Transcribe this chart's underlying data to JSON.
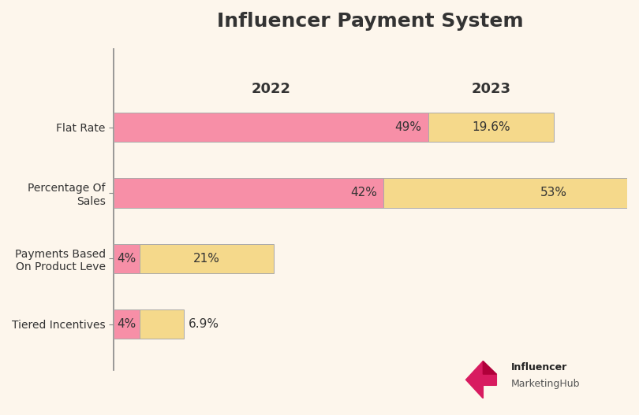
{
  "title": "Influencer Payment System",
  "title_fontsize": 18,
  "background_color": "#FDF6EC",
  "plot_bg_color": "#FDF6EC",
  "categories": [
    "Flat Rate",
    "Percentage Of\nSales",
    "Payments Based\nOn Product Leve",
    "Tiered Incentives"
  ],
  "values_2022": [
    49,
    42,
    4,
    4
  ],
  "values_2023": [
    19.6,
    53,
    21,
    6.9
  ],
  "labels_2022": [
    "49%",
    "42%",
    "4%",
    "4%"
  ],
  "labels_2023": [
    "19.6%",
    "53%",
    "21%",
    "6.9%"
  ],
  "color_2022": "#F78FA7",
  "color_2023": "#F5D98B",
  "year_2022": "2022",
  "year_2023": "2023",
  "xlim": [
    0,
    80
  ],
  "bar_height": 0.45,
  "font_color": "#333333",
  "label_fontsize": 11,
  "tick_fontsize": 10,
  "axis_color": "#888888",
  "logo_color": "#D81B60",
  "logo_text_influencer": "Influencer",
  "logo_text_hub": "MarketingHub"
}
